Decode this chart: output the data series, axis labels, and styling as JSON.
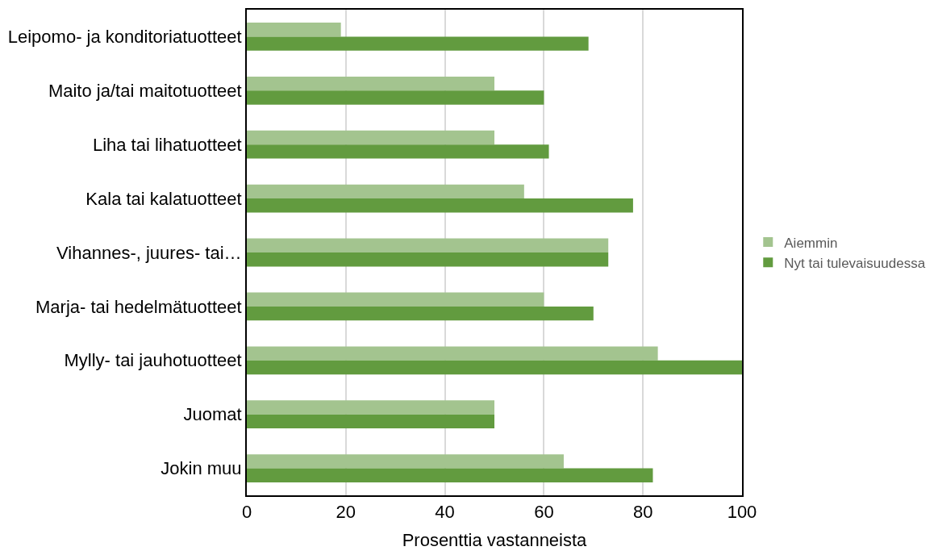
{
  "chart_data": {
    "type": "bar",
    "orientation": "horizontal",
    "xlabel": "Prosenttia vastanneista",
    "categories": [
      "Leipomo- ja konditoriatuotteet",
      "Maito ja/tai maitotuotteet",
      "Liha tai lihatuotteet",
      "Kala tai kalatuotteet",
      "Vihannes-, juures- tai…",
      "Marja- tai hedelmätuotteet",
      "Mylly- tai jauhotuotteet",
      "Juomat",
      "Jokin muu"
    ],
    "series": [
      {
        "name": "Aiemmin",
        "color": "#a3c48f",
        "values": [
          19,
          50,
          50,
          56,
          73,
          60,
          83,
          50,
          64
        ]
      },
      {
        "name": "Nyt tai tulevaisuudessa",
        "color": "#629b3f",
        "values": [
          69,
          60,
          61,
          78,
          73,
          70,
          100,
          50,
          82
        ]
      }
    ],
    "xlim": [
      0,
      100
    ],
    "xticks": [
      0,
      20,
      40,
      60,
      80,
      100
    ],
    "grid": "x",
    "legend": "right"
  }
}
